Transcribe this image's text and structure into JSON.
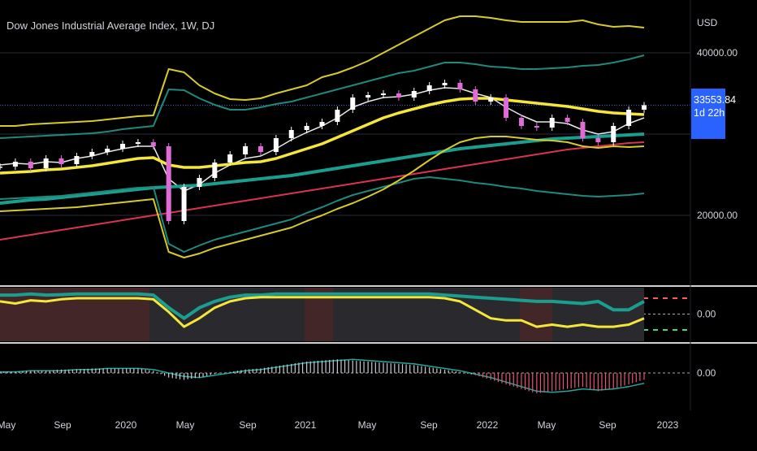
{
  "header": {
    "title": "Dow Jones Industrial Average Index, 1W, DJ",
    "currency": "USD"
  },
  "price_tag": {
    "price": "33553.84",
    "countdown": "1d 22h"
  },
  "colors": {
    "background": "#000000",
    "candle_up": "#ffffff",
    "candle_down": "#e06bd6",
    "ma_fast": "#e8e8e8",
    "ma_mid": "#f5e63b",
    "ma_slow": "#1a9e8f",
    "ma_long": "#d8344f",
    "band_outer": "#d6cb2a",
    "band_inner": "#1e8a7c",
    "accent_tag": "#2962ff"
  },
  "chart_data": [
    {
      "type": "line",
      "panel": "price",
      "title": "Dow Jones Industrial Average Index, 1W, DJ",
      "x_ticks": [
        "May",
        "Sep",
        "2020",
        "May",
        "Sep",
        "2021",
        "May",
        "Sep",
        "2022",
        "May",
        "Sep",
        "2023"
      ],
      "y_ticks": [
        "40000.00",
        "20000.00"
      ],
      "ylim": [
        12000,
        46000
      ],
      "last_value": 33553.84,
      "series": [
        {
          "role": "price",
          "values": [
            26000,
            26600,
            25800,
            27000,
            26300,
            27300,
            27800,
            28200,
            28800,
            29000,
            28500,
            19300,
            23500,
            24600,
            26500,
            27500,
            28500,
            27800,
            29500,
            30500,
            31000,
            31500,
            33000,
            34500,
            34800,
            35000,
            34500,
            35300,
            36000,
            36300,
            35500,
            34000,
            34500,
            32000,
            31000,
            30800,
            32000,
            31500,
            29500,
            29000,
            31000,
            33000,
            33553.84
          ]
        },
        {
          "role": "ma-fast",
          "values": [
            26200,
            26400,
            26300,
            26600,
            26500,
            27000,
            27300,
            27800,
            28200,
            28500,
            28500,
            24500,
            23000,
            23800,
            25200,
            26200,
            27000,
            27300,
            28200,
            29300,
            30200,
            31000,
            32000,
            33300,
            34000,
            34500,
            34600,
            34900,
            35400,
            35700,
            35600,
            35000,
            34500,
            33300,
            32300,
            31500,
            31500,
            31300,
            30500,
            30000,
            30300,
            31300,
            32000
          ]
        },
        {
          "role": "ma-mid",
          "values": [
            25200,
            25300,
            25400,
            25600,
            25700,
            25900,
            26100,
            26400,
            26700,
            27000,
            27100,
            26200,
            25900,
            25900,
            26100,
            26300,
            26500,
            26600,
            27000,
            27600,
            28200,
            28800,
            29600,
            30400,
            31200,
            32000,
            32600,
            33100,
            33600,
            34000,
            34300,
            34400,
            34400,
            34200,
            34000,
            33800,
            33600,
            33400,
            33100,
            32800,
            32600,
            32500,
            32400
          ]
        },
        {
          "role": "ma-slow",
          "values": [
            21500,
            21700,
            21900,
            22000,
            22200,
            22400,
            22600,
            22800,
            23000,
            23200,
            23400,
            23500,
            23600,
            23700,
            23900,
            24100,
            24300,
            24500,
            24700,
            24900,
            25200,
            25500,
            25800,
            26100,
            26400,
            26700,
            27000,
            27300,
            27600,
            27900,
            28200,
            28400,
            28600,
            28800,
            29000,
            29200,
            29400,
            29500,
            29600,
            29700,
            29800,
            29900,
            30000
          ]
        },
        {
          "role": "ma-long",
          "values": [
            17000,
            17300,
            17600,
            17900,
            18200,
            18500,
            18800,
            19100,
            19400,
            19700,
            20000,
            20300,
            20600,
            20900,
            21200,
            21500,
            21800,
            22100,
            22400,
            22700,
            23000,
            23300,
            23600,
            23900,
            24200,
            24500,
            24800,
            25100,
            25400,
            25700,
            26000,
            26300,
            26600,
            26900,
            27200,
            27500,
            27800,
            28100,
            28300,
            28500,
            28700,
            28900,
            29000
          ]
        },
        {
          "role": "band-upper-outer",
          "values": [
            31000,
            31000,
            31200,
            31300,
            31400,
            31500,
            31600,
            31800,
            32000,
            32200,
            32300,
            38000,
            37600,
            36000,
            35000,
            34300,
            34200,
            34400,
            35000,
            35500,
            36000,
            37000,
            37500,
            38200,
            39000,
            40000,
            41000,
            42000,
            43000,
            44000,
            44500,
            44500,
            44300,
            44000,
            43800,
            43800,
            43800,
            43800,
            44000,
            43500,
            43200,
            43300,
            43100
          ]
        },
        {
          "role": "band-upper-inner",
          "values": [
            29500,
            29600,
            29700,
            29800,
            29900,
            30000,
            30100,
            30300,
            30600,
            30800,
            31000,
            35500,
            35400,
            34400,
            33600,
            33000,
            33000,
            33300,
            33700,
            34000,
            34500,
            35000,
            35500,
            36000,
            36500,
            37000,
            37500,
            37800,
            38300,
            38800,
            38800,
            38600,
            38300,
            38200,
            38000,
            38000,
            38100,
            38200,
            38400,
            38500,
            38800,
            39200,
            39700
          ]
        },
        {
          "role": "band-lower-inner",
          "values": [
            22000,
            22100,
            22200,
            22300,
            22400,
            22600,
            22800,
            23000,
            23200,
            23400,
            23500,
            16500,
            15500,
            16300,
            17000,
            17500,
            18000,
            18500,
            19000,
            19500,
            20300,
            21000,
            21800,
            22500,
            23000,
            23500,
            24000,
            24500,
            24700,
            24500,
            24300,
            24000,
            23800,
            23500,
            23300,
            23000,
            22800,
            22600,
            22400,
            22300,
            22400,
            22500,
            22700
          ]
        },
        {
          "role": "band-lower-outer",
          "values": [
            20500,
            20600,
            20700,
            20800,
            20900,
            21000,
            21200,
            21400,
            21600,
            21800,
            22000,
            15500,
            14800,
            15300,
            16000,
            16500,
            17000,
            17500,
            18000,
            18500,
            19300,
            20000,
            20800,
            21500,
            22300,
            23200,
            24300,
            25500,
            26800,
            28000,
            29000,
            29500,
            29700,
            29700,
            29500,
            29300,
            29200,
            29000,
            28500,
            28300,
            28500,
            28400,
            28500
          ]
        }
      ]
    },
    {
      "type": "line",
      "panel": "oscillator-1",
      "y_ticks": [
        "0.00"
      ],
      "series": [
        {
          "role": "osc-teal",
          "values": [
            0.9,
            0.9,
            0.95,
            0.9,
            0.92,
            0.95,
            0.95,
            0.95,
            0.95,
            0.95,
            0.9,
            0.3,
            -0.2,
            0.3,
            0.6,
            0.8,
            0.9,
            0.9,
            0.95,
            0.95,
            0.95,
            0.95,
            0.95,
            0.95,
            0.95,
            0.95,
            0.95,
            0.95,
            0.95,
            0.9,
            0.85,
            0.8,
            0.75,
            0.7,
            0.65,
            0.6,
            0.6,
            0.55,
            0.5,
            0.6,
            0.2,
            0.2,
            0.6
          ]
        },
        {
          "role": "osc-yellow",
          "values": [
            0.6,
            0.5,
            0.65,
            0.6,
            0.7,
            0.75,
            0.75,
            0.75,
            0.75,
            0.75,
            0.7,
            0.1,
            -0.6,
            -0.2,
            0.3,
            0.6,
            0.75,
            0.8,
            0.8,
            0.8,
            0.8,
            0.8,
            0.8,
            0.8,
            0.8,
            0.8,
            0.8,
            0.8,
            0.8,
            0.75,
            0.6,
            0.2,
            -0.2,
            -0.3,
            -0.3,
            -0.6,
            -0.5,
            -0.6,
            -0.5,
            -0.6,
            -0.6,
            -0.5,
            -0.2
          ]
        }
      ]
    },
    {
      "type": "bar",
      "panel": "oscillator-2",
      "y_ticks": [
        "0.00"
      ],
      "series": [
        {
          "role": "histogram",
          "values": [
            0.05,
            0.05,
            0.1,
            0.1,
            0.15,
            0.15,
            0.2,
            0.2,
            0.2,
            0.2,
            0.1,
            -0.2,
            -0.3,
            -0.2,
            -0.05,
            0.05,
            0.15,
            0.2,
            0.3,
            0.4,
            0.5,
            0.55,
            0.6,
            0.55,
            0.5,
            0.45,
            0.4,
            0.35,
            0.25,
            0.15,
            0.05,
            -0.1,
            -0.3,
            -0.5,
            -0.7,
            -0.9,
            -0.8,
            -0.7,
            -0.6,
            -0.8,
            -0.7,
            -0.5,
            -0.3
          ]
        },
        {
          "role": "signal",
          "values": [
            0.05,
            0.05,
            0.1,
            0.1,
            0.1,
            0.15,
            0.15,
            0.2,
            0.2,
            0.2,
            0.15,
            0.0,
            -0.15,
            -0.2,
            -0.1,
            0.0,
            0.1,
            0.15,
            0.25,
            0.35,
            0.45,
            0.5,
            0.55,
            0.6,
            0.55,
            0.5,
            0.45,
            0.4,
            0.3,
            0.2,
            0.1,
            -0.05,
            -0.2,
            -0.4,
            -0.6,
            -0.8,
            -0.85,
            -0.8,
            -0.7,
            -0.75,
            -0.7,
            -0.6,
            -0.45
          ]
        }
      ]
    }
  ]
}
